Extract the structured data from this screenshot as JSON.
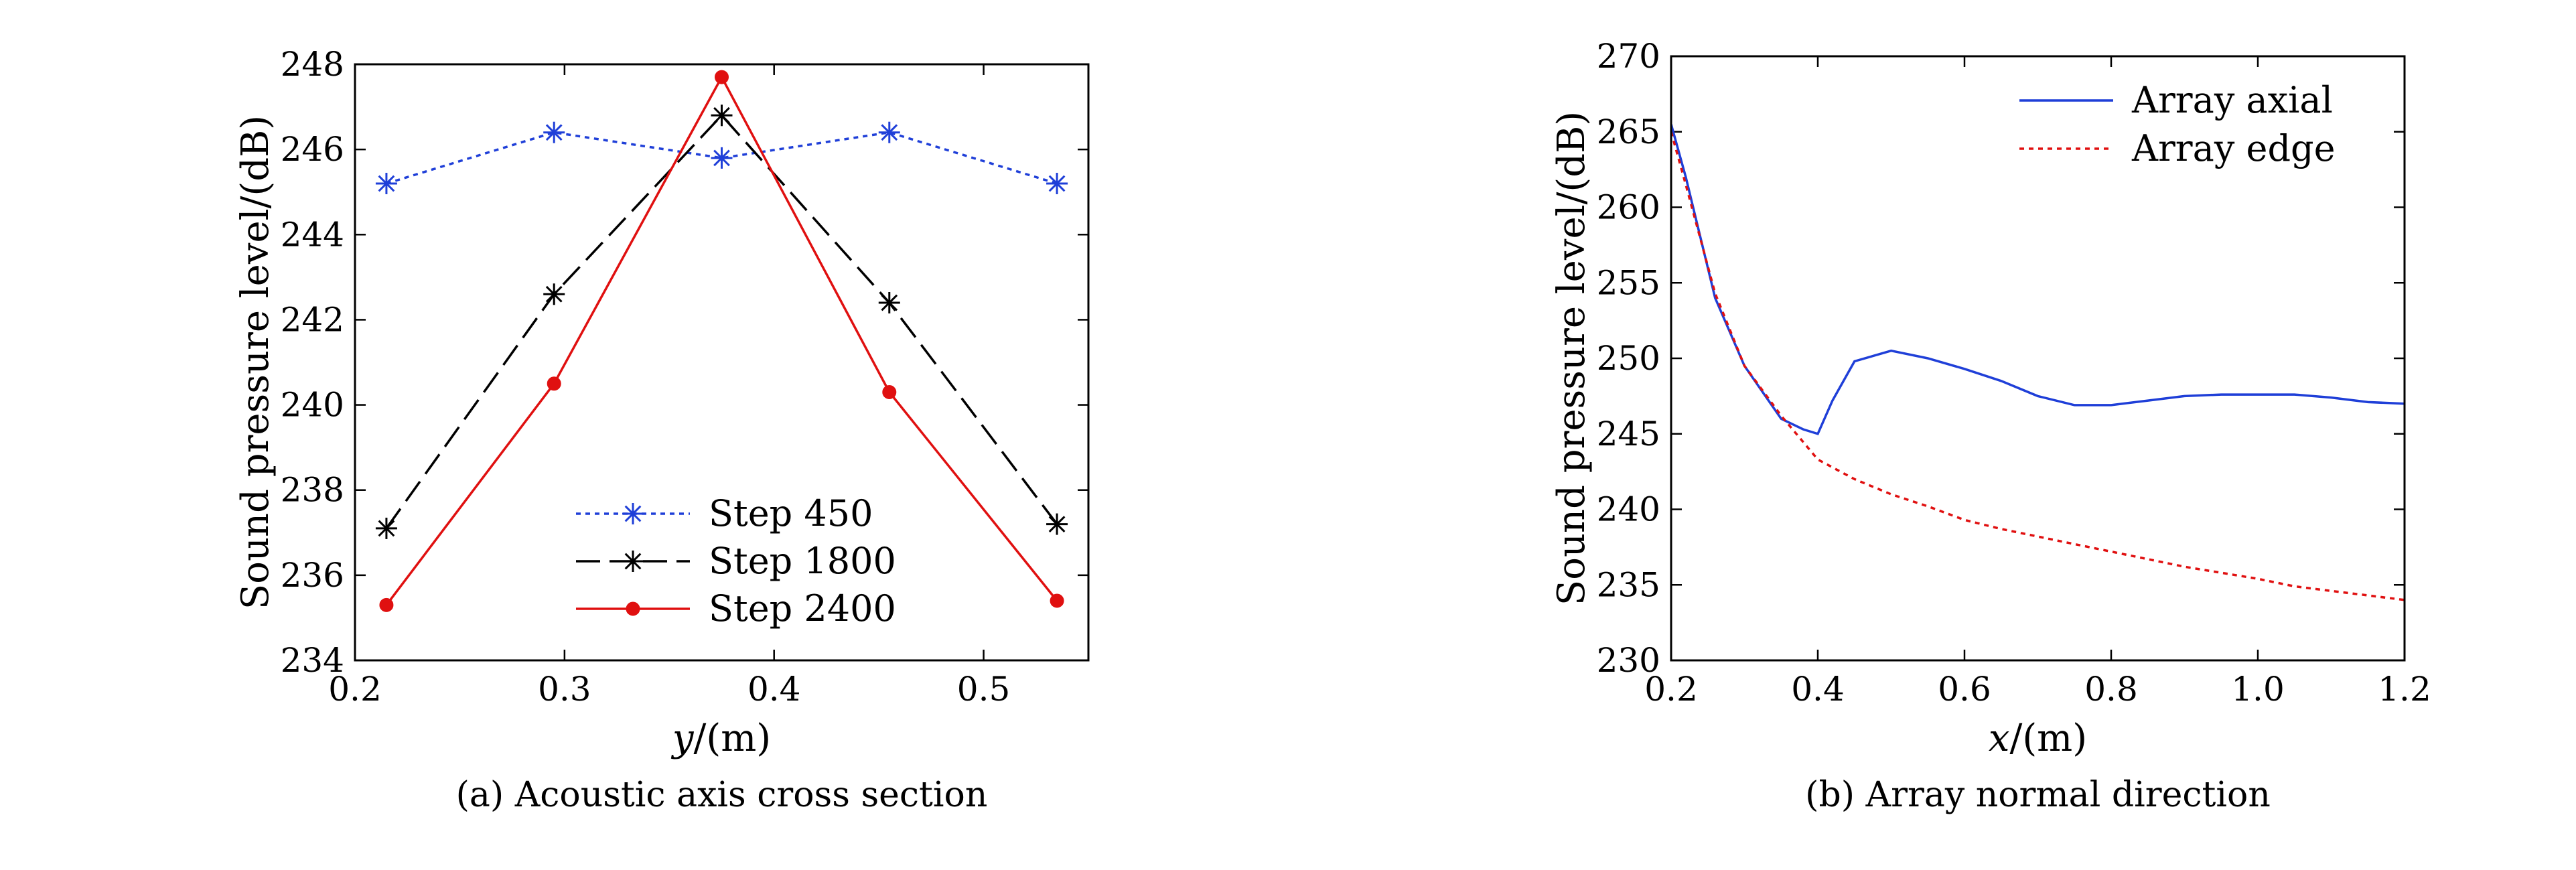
{
  "chart_data": [
    {
      "type": "line",
      "title": "",
      "caption": "(a) Acoustic axis cross section",
      "xlabel_var": "y",
      "xlabel_unit": "/(m)",
      "ylabel": "Sound pressure level/(dB)",
      "xlim": [
        0.2,
        0.55
      ],
      "ylim": [
        234,
        248
      ],
      "xticks": [
        0.2,
        0.3,
        0.4,
        0.5
      ],
      "xtick_labels": [
        "0.2",
        "0.3",
        "0.4",
        "0.5"
      ],
      "yticks": [
        234,
        236,
        238,
        240,
        242,
        244,
        246,
        248
      ],
      "ytick_labels": [
        "234",
        "236",
        "238",
        "240",
        "242",
        "244",
        "246",
        "248"
      ],
      "legend_position": "bottom-center",
      "x": [
        0.215,
        0.295,
        0.375,
        0.455,
        0.535
      ],
      "series": [
        {
          "name": "Step 450",
          "values": [
            245.2,
            246.4,
            245.8,
            246.4,
            245.2
          ],
          "color": "#1f3fd8",
          "dash": "dotted",
          "marker": "star"
        },
        {
          "name": "Step 1800",
          "values": [
            237.1,
            242.6,
            246.8,
            242.4,
            237.2
          ],
          "color": "#000000",
          "dash": "dashed",
          "marker": "star"
        },
        {
          "name": "Step 2400",
          "values": [
            235.3,
            240.5,
            247.7,
            240.3,
            235.4
          ],
          "color": "#e01010",
          "dash": "solid",
          "marker": "dot"
        }
      ]
    },
    {
      "type": "line",
      "title": "",
      "caption": "(b) Array normal direction",
      "xlabel_var": "x",
      "xlabel_unit": "/(m)",
      "ylabel": "Sound pressure level/(dB)",
      "xlim": [
        0.2,
        1.2
      ],
      "ylim": [
        230,
        270
      ],
      "xticks": [
        0.2,
        0.4,
        0.6,
        0.8,
        1.0,
        1.2
      ],
      "xtick_labels": [
        "0.2",
        "0.4",
        "0.6",
        "0.8",
        "1.0",
        "1.2"
      ],
      "yticks": [
        230,
        235,
        240,
        245,
        250,
        255,
        260,
        265,
        270
      ],
      "ytick_labels": [
        "230",
        "235",
        "240",
        "245",
        "250",
        "255",
        "260",
        "265",
        "270"
      ],
      "legend_position": "top-right",
      "series": [
        {
          "name": "Array axial",
          "color": "#1f3fd8",
          "dash": "solid",
          "x": [
            0.2,
            0.22,
            0.26,
            0.3,
            0.35,
            0.38,
            0.4,
            0.42,
            0.45,
            0.5,
            0.55,
            0.6,
            0.65,
            0.7,
            0.75,
            0.8,
            0.85,
            0.9,
            0.95,
            1.0,
            1.05,
            1.1,
            1.15,
            1.2
          ],
          "values": [
            265.5,
            262,
            254,
            249.5,
            246,
            245.3,
            245,
            247.2,
            249.8,
            250.5,
            250,
            249.3,
            248.5,
            247.5,
            246.9,
            246.9,
            247.2,
            247.5,
            247.6,
            247.6,
            247.6,
            247.4,
            247.1,
            247
          ]
        },
        {
          "name": "Array edge",
          "color": "#e01010",
          "dash": "dotted",
          "x": [
            0.2,
            0.22,
            0.26,
            0.3,
            0.35,
            0.4,
            0.45,
            0.5,
            0.55,
            0.6,
            0.65,
            0.7,
            0.75,
            0.8,
            0.85,
            0.9,
            0.95,
            1.0,
            1.05,
            1.1,
            1.15,
            1.2
          ],
          "values": [
            265,
            261.5,
            254.3,
            249.5,
            246.2,
            243.3,
            242,
            241,
            240.2,
            239.3,
            238.7,
            238.2,
            237.7,
            237.2,
            236.7,
            236.2,
            235.8,
            235.4,
            234.9,
            234.6,
            234.3,
            234
          ]
        }
      ]
    }
  ]
}
